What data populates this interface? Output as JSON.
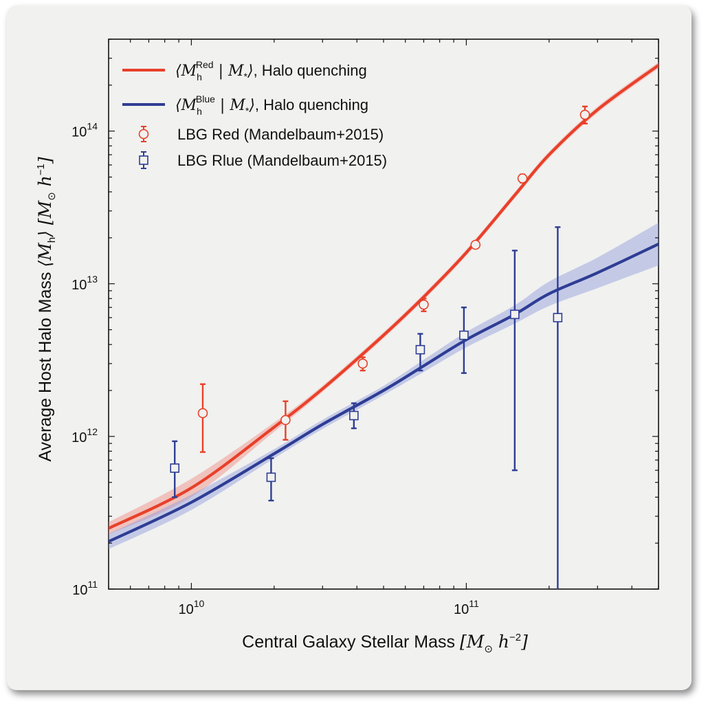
{
  "chart_data": {
    "type": "scatter",
    "xscale": "log",
    "yscale": "log",
    "xlim": [
      5000000000.0,
      500000000000.0
    ],
    "ylim": [
      100000000000.0,
      400000000000000.0
    ],
    "xlabel": "Central Galaxy Stellar Mass [M⊙ h⁻²]",
    "ylabel": "Average Host Halo Mass ⟨M_h⟩ [M⊙ h⁻¹]",
    "x_ticks": [
      {
        "value": 10000000000.0,
        "label": "10",
        "exp": "10"
      },
      {
        "value": 100000000000.0,
        "label": "10",
        "exp": "11"
      }
    ],
    "y_ticks": [
      {
        "value": 100000000000.0,
        "label": "10",
        "exp": "11"
      },
      {
        "value": 1000000000000.0,
        "label": "10",
        "exp": "12"
      },
      {
        "value": 10000000000000.0,
        "label": "10",
        "exp": "13"
      },
      {
        "value": 100000000000000.0,
        "label": "10",
        "exp": "14"
      }
    ],
    "legend_position": "top-left",
    "series": [
      {
        "name": "⟨M_h^Red | M_*⟩, Halo quenching",
        "kind": "line",
        "color": "#e8402a",
        "band_color": "#f08a80",
        "x": [
          5000000000.0,
          10000000000.0,
          20000000000.0,
          30000000000.0,
          50000000000.0,
          70000000000.0,
          100000000000.0,
          150000000000.0,
          200000000000.0,
          300000000000.0,
          500000000000.0
        ],
        "y": [
          250000000000.0,
          460000000000.0,
          1150000000000.0,
          2050000000000.0,
          4600000000000.0,
          8200000000000.0,
          16000000000000.0,
          38000000000000.0,
          70000000000000.0,
          138000000000000.0,
          270000000000000.0
        ],
        "band_width_dex": [
          0.04,
          0.06,
          0.03,
          0.02,
          0.02,
          0.02,
          0.02,
          0.02,
          0.02,
          0.02,
          0.02
        ]
      },
      {
        "name": "⟨M_h^Blue | M_*⟩, Halo quenching",
        "kind": "line",
        "color": "#2e3d94",
        "band_color": "#8f9bdc",
        "x": [
          5000000000.0,
          10000000000.0,
          20000000000.0,
          30000000000.0,
          50000000000.0,
          70000000000.0,
          100000000000.0,
          150000000000.0,
          200000000000.0,
          300000000000.0,
          500000000000.0
        ],
        "y": [
          205000000000.0,
          370000000000.0,
          770000000000.0,
          1200000000000.0,
          2000000000000.0,
          2900000000000.0,
          4300000000000.0,
          6300000000000.0,
          8600000000000.0,
          11800000000000.0,
          18200000000000.0
        ],
        "band_width_dex": [
          0.05,
          0.05,
          0.03,
          0.03,
          0.03,
          0.04,
          0.05,
          0.06,
          0.08,
          0.1,
          0.14
        ]
      },
      {
        "name": "LBG Red (Mandelbaum+2015)",
        "kind": "points",
        "marker": "circle",
        "color": "#e8402a",
        "points": [
          {
            "x": 11000000000.0,
            "y": 1420000000000.0,
            "ylo": 790000000000.0,
            "yhi": 2200000000000.0
          },
          {
            "x": 22000000000.0,
            "y": 1280000000000.0,
            "ylo": 950000000000.0,
            "yhi": 1700000000000.0
          },
          {
            "x": 42000000000.0,
            "y": 3000000000000.0,
            "ylo": 2700000000000.0,
            "yhi": 3300000000000.0
          },
          {
            "x": 70000000000.0,
            "y": 7300000000000.0,
            "ylo": 6600000000000.0,
            "yhi": 8000000000000.0
          },
          {
            "x": 108000000000.0,
            "y": 18000000000000.0,
            "ylo": 17200000000000.0,
            "yhi": 18800000000000.0
          },
          {
            "x": 160000000000.0,
            "y": 49000000000000.0,
            "ylo": 46000000000000.0,
            "yhi": 52000000000000.0
          },
          {
            "x": 270000000000.0,
            "y": 128000000000000.0,
            "ylo": 112000000000000.0,
            "yhi": 145000000000000.0
          }
        ]
      },
      {
        "name": "LBG Rlue (Mandelbaum+2015)",
        "kind": "points",
        "marker": "square",
        "color": "#2e3d94",
        "points": [
          {
            "x": 8700000000.0,
            "y": 620000000000.0,
            "ylo": 400000000000.0,
            "yhi": 930000000000.0
          },
          {
            "x": 19500000000.0,
            "y": 540000000000.0,
            "ylo": 380000000000.0,
            "yhi": 720000000000.0
          },
          {
            "x": 39000000000.0,
            "y": 1370000000000.0,
            "ylo": 1130000000000.0,
            "yhi": 1650000000000.0
          },
          {
            "x": 68000000000.0,
            "y": 3700000000000.0,
            "ylo": 2700000000000.0,
            "yhi": 4700000000000.0
          },
          {
            "x": 98000000000.0,
            "y": 4600000000000.0,
            "ylo": 2600000000000.0,
            "yhi": 7000000000000.0
          },
          {
            "x": 150000000000.0,
            "y": 6300000000000.0,
            "ylo": 600000000000.0,
            "yhi": 16500000000000.0
          },
          {
            "x": 215000000000.0,
            "y": 6000000000000.0,
            "ylo": 100000000000.0,
            "yhi": 23500000000000.0
          }
        ]
      }
    ]
  }
}
